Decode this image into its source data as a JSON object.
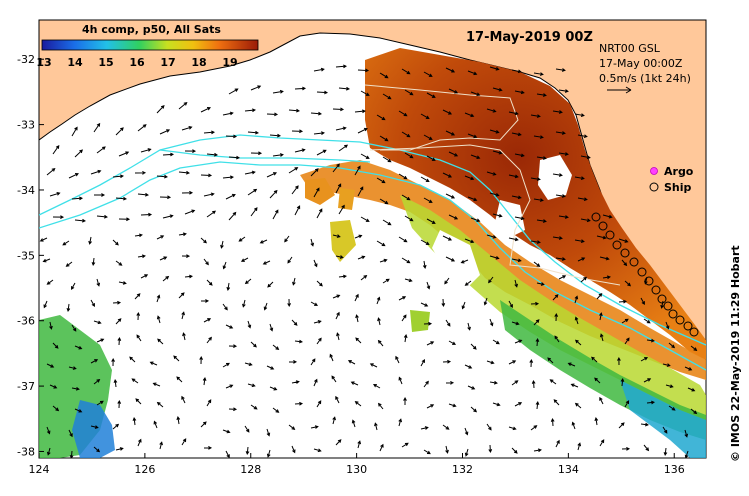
{
  "header": {
    "colorbar_title": "4h comp, p50, All Sats",
    "date_title": "17-May-2019 00Z"
  },
  "colorbar": {
    "tick_labels": [
      "13",
      "14",
      "15",
      "16",
      "17",
      "18",
      "19"
    ]
  },
  "info_box": {
    "line1": "NRT00 GSL",
    "line2": "17-May 00:00Z",
    "line3": "0.5m/s (1kt 24h)"
  },
  "legend": {
    "argo": "Argo",
    "ship": "Ship"
  },
  "axes": {
    "x_ticks": [
      "124",
      "126",
      "128",
      "130",
      "132",
      "134",
      "136"
    ],
    "y_ticks": [
      "-32",
      "-33",
      "-34",
      "-35",
      "-36",
      "-37",
      "-38"
    ],
    "x_values": [
      124,
      126,
      128,
      130,
      132,
      134,
      136
    ],
    "y_values": [
      -32,
      -33,
      -34,
      -35,
      -36,
      -37,
      -38
    ],
    "x_range": [
      124,
      136.6
    ],
    "y_range": [
      -38.1,
      -31.4
    ]
  },
  "credit": "© IMOS 22-May-2019 11:29 Hobart",
  "colors": {
    "land": "#ffc89a",
    "contour": "#40e0e8",
    "sst_warm": "#a83a08",
    "sst_mid": "#e87a10",
    "sst_cool": "#40b840",
    "argo_marker": "#ff40ff"
  }
}
